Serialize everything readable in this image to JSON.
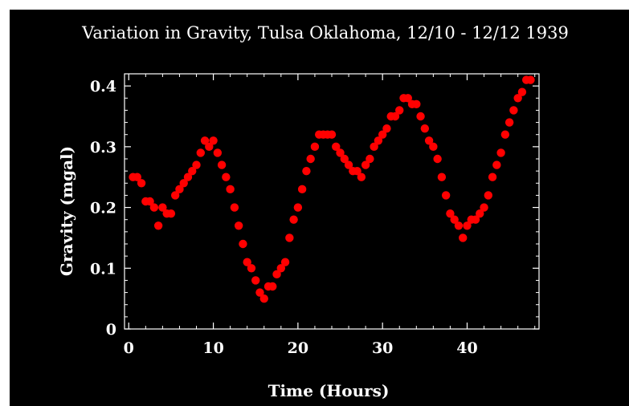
{
  "chart_data": {
    "type": "scatter",
    "title": "Variation in Gravity, Tulsa Oklahoma, 12/10 - 12/12 1939",
    "xlabel": "Time (Hours)",
    "ylabel": "Gravity (mgal)",
    "xlim": [
      -0.5,
      48.5
    ],
    "ylim": [
      0,
      0.42
    ],
    "xticks": [
      0,
      10,
      20,
      30,
      40
    ],
    "yticks": [
      0,
      0.1,
      0.2,
      0.3,
      0.4
    ],
    "xtick_labels": [
      "0",
      "10",
      "20",
      "30",
      "40"
    ],
    "ytick_labels": [
      "0",
      "0.1",
      "0.2",
      "0.3",
      "0.4"
    ],
    "grid": false,
    "colors": {
      "background": "#000000",
      "points": "#ff0000",
      "axes": "#ffffff"
    },
    "x": [
      0.5,
      1,
      1.5,
      2,
      2.5,
      3,
      3.5,
      4,
      4.5,
      5,
      5.5,
      6,
      6.5,
      7,
      7.5,
      8,
      8.5,
      9,
      9.5,
      10,
      10.5,
      11,
      11.5,
      12,
      12.5,
      13,
      13.5,
      14,
      14.5,
      15,
      15.5,
      16,
      16.5,
      17,
      17.5,
      18,
      18.5,
      19,
      19.5,
      20,
      20.5,
      21,
      21.5,
      22,
      22.5,
      23,
      23.5,
      24,
      24.5,
      25,
      25.5,
      26,
      26.5,
      27,
      27.5,
      28,
      28.5,
      29,
      29.5,
      30,
      30.5,
      31,
      31.5,
      32,
      32.5,
      33,
      33.5,
      34,
      34.5,
      35,
      35.5,
      36,
      36.5,
      37,
      37.5,
      38,
      38.5,
      39,
      39.5,
      40,
      40.5,
      41,
      41.5,
      42,
      42.5,
      43,
      43.5,
      44,
      44.5,
      45,
      45.5,
      46,
      46.5,
      47,
      47.5
    ],
    "y": [
      0.25,
      0.25,
      0.24,
      0.21,
      0.21,
      0.2,
      0.17,
      0.2,
      0.19,
      0.19,
      0.22,
      0.23,
      0.24,
      0.25,
      0.26,
      0.27,
      0.29,
      0.31,
      0.3,
      0.31,
      0.29,
      0.27,
      0.25,
      0.23,
      0.2,
      0.17,
      0.14,
      0.11,
      0.1,
      0.08,
      0.06,
      0.05,
      0.07,
      0.07,
      0.09,
      0.1,
      0.11,
      0.15,
      0.18,
      0.2,
      0.23,
      0.26,
      0.28,
      0.3,
      0.32,
      0.32,
      0.32,
      0.32,
      0.3,
      0.29,
      0.28,
      0.27,
      0.26,
      0.26,
      0.25,
      0.27,
      0.28,
      0.3,
      0.31,
      0.32,
      0.33,
      0.35,
      0.35,
      0.36,
      0.38,
      0.38,
      0.37,
      0.37,
      0.35,
      0.33,
      0.31,
      0.3,
      0.28,
      0.25,
      0.22,
      0.19,
      0.18,
      0.17,
      0.15,
      0.17,
      0.18,
      0.18,
      0.19,
      0.2,
      0.22,
      0.25,
      0.27,
      0.29,
      0.32,
      0.34,
      0.36,
      0.38,
      0.39,
      0.41,
      0.41
    ]
  }
}
